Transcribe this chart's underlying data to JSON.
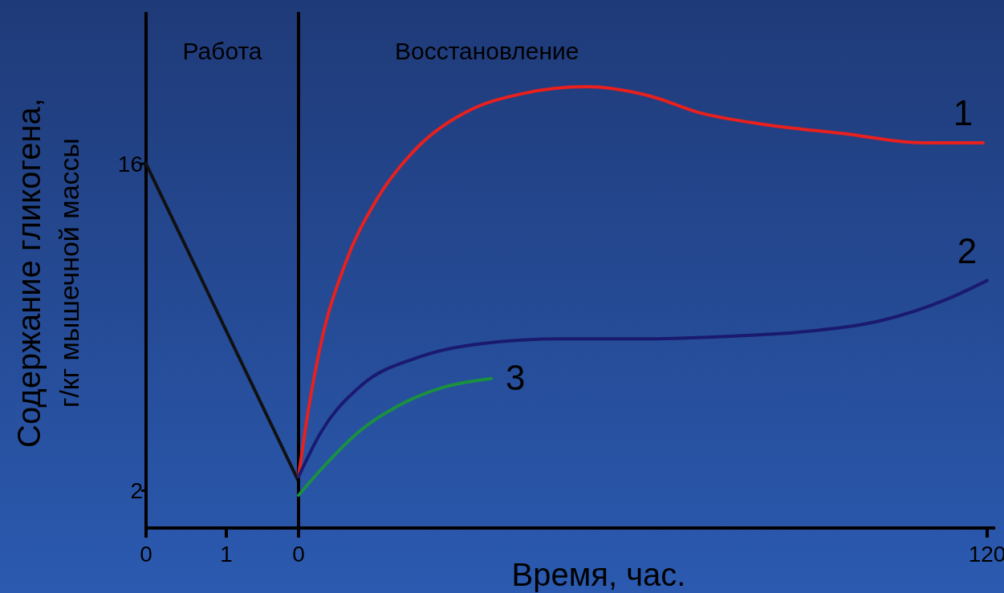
{
  "chart_data": [
    {
      "type": "line",
      "title": "Работа",
      "ylabel": "Содержание гликогена,\nг/кг мышечной массы",
      "xlim": [
        0,
        1.9
      ],
      "xticks": [
        0,
        1
      ],
      "ylim": [
        0.4,
        22.5
      ],
      "yticks": [
        2,
        16
      ],
      "series": [
        {
          "color": "#111111",
          "x": [
            0,
            1.9
          ],
          "values": [
            16,
            2.4
          ]
        }
      ]
    },
    {
      "type": "line",
      "title": "Восстановление",
      "xlabel": "Время, час.",
      "xlim": [
        0,
        121.4
      ],
      "xticks": [
        0,
        120
      ],
      "ylim": [
        0.4,
        22.5
      ],
      "tick_labels": "x",
      "series": [
        {
          "name": "1",
          "color": "#e8201e",
          "x": [
            0,
            1.1,
            3.9,
            8.1,
            13.7,
            20.7,
            29.1,
            38.9,
            50.1,
            61.3,
            69.7,
            80.8,
            94.8,
            108.8,
            119.3
          ],
          "values": [
            2.6,
            4.5,
            8.3,
            11.7,
            14.5,
            16.7,
            18.2,
            19.0,
            19.3,
            18.9,
            18.2,
            17.7,
            17.3,
            16.9,
            16.9
          ]
        },
        {
          "name": "2",
          "color": "#1a1a6e",
          "x": [
            0,
            3.9,
            10.9,
            20.7,
            31.9,
            45.9,
            59.9,
            73.8,
            87.8,
            101.8,
            113,
            120
          ],
          "values": [
            2.6,
            4.5,
            6.5,
            7.7,
            8.3,
            8.5,
            8.5,
            8.6,
            8.8,
            9.3,
            10.2,
            11.0
          ]
        },
        {
          "name": "3",
          "color": "#1a9040",
          "x": [
            0,
            3.9,
            10.9,
            17.9,
            24.9,
            33.6
          ],
          "values": [
            1.8,
            2.9,
            4.6,
            5.7,
            6.4,
            6.8
          ]
        }
      ]
    }
  ]
}
